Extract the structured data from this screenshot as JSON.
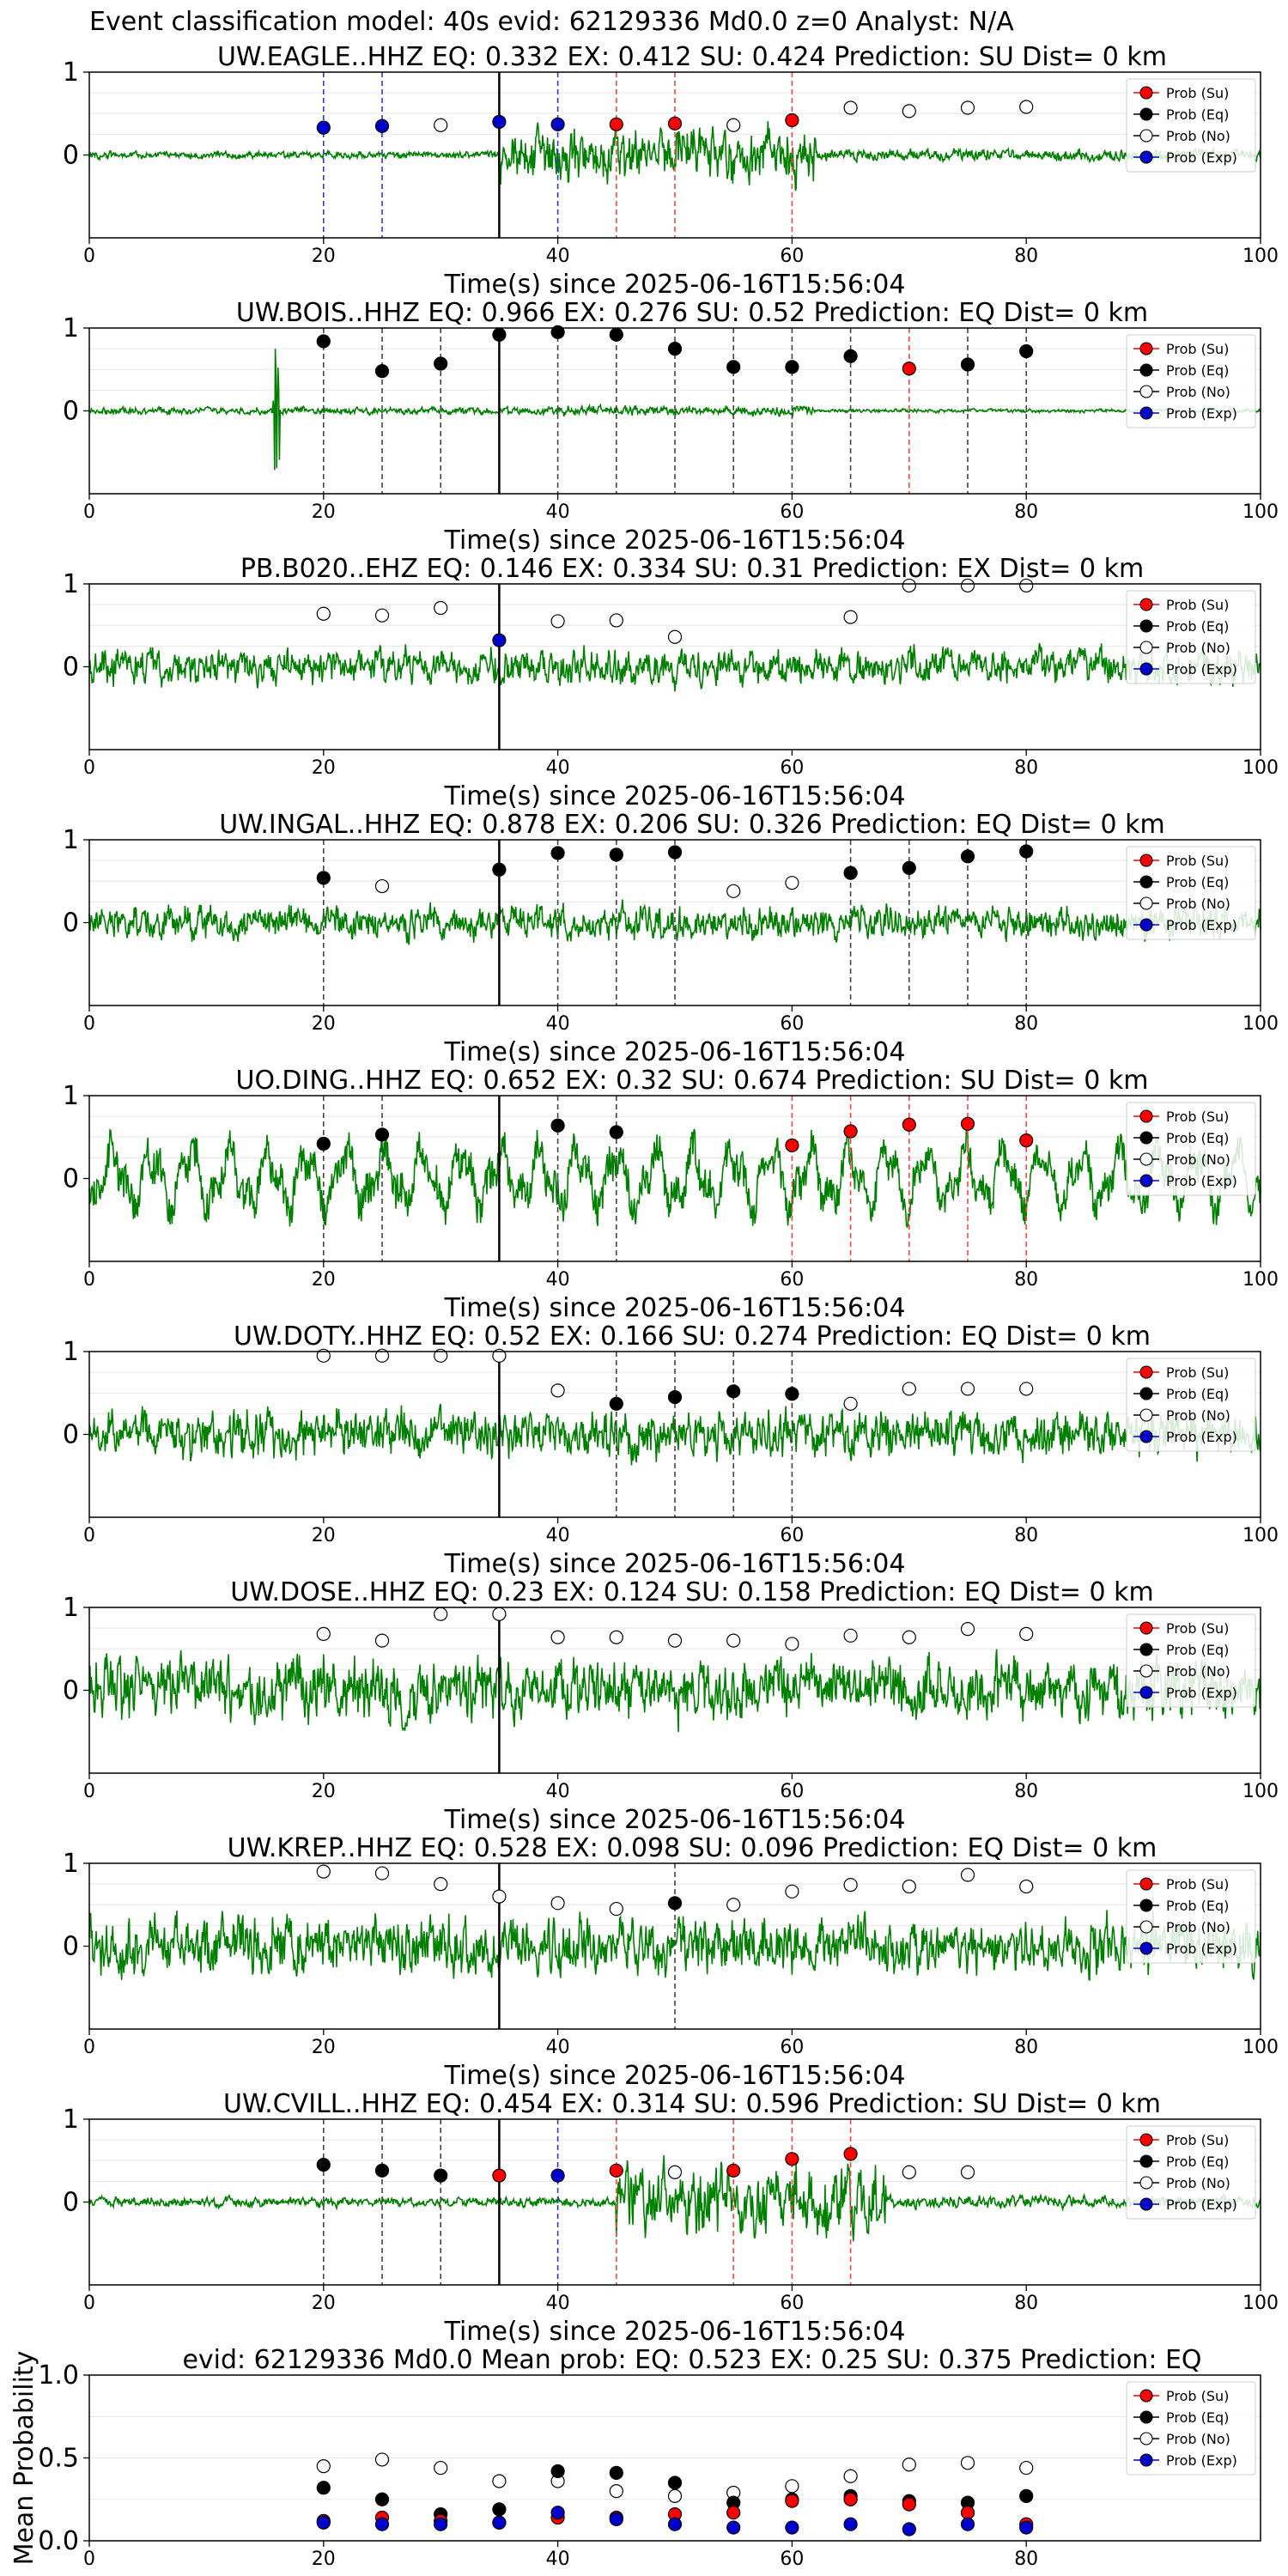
{
  "figure_title": "Event classification model: 40s evid: 62129336 Md0.0 z=0 Analyst: N/A",
  "legend_labels": [
    "Prob (Su)",
    "Prob (Eq)",
    "Prob (No)",
    "Prob (Exp)"
  ],
  "colors": {
    "su": "#ff0000",
    "eq": "#000000",
    "no": "#ffffff",
    "exp": "#0000cc",
    "trace": "#008000"
  },
  "chart_data": [
    {
      "type": "line",
      "title": "UW.EAGLE..HHZ   EQ: 0.332  EX: 0.412  SU: 0.424   Prediction: SU    Dist= 0 km",
      "xlabel": "Time(s) since 2025-06-16T15:56:04",
      "ylabel": "",
      "xlim": [
        0,
        100
      ],
      "ylim": [
        -1,
        1
      ],
      "x_ticks": [
        0,
        20,
        40,
        60,
        80,
        100
      ],
      "y_ticks": [
        0,
        1
      ],
      "noise": [
        0.06,
        0.45,
        0.1
      ],
      "burst": [
        35,
        62
      ],
      "points": [
        {
          "x": 20,
          "y": 0.33,
          "cls": "exp"
        },
        {
          "x": 25,
          "y": 0.35,
          "cls": "exp"
        },
        {
          "x": 30,
          "y": 0.36,
          "cls": "no"
        },
        {
          "x": 35,
          "y": 0.4,
          "cls": "exp"
        },
        {
          "x": 40,
          "y": 0.37,
          "cls": "exp"
        },
        {
          "x": 45,
          "y": 0.37,
          "cls": "su"
        },
        {
          "x": 50,
          "y": 0.38,
          "cls": "su"
        },
        {
          "x": 55,
          "y": 0.36,
          "cls": "no"
        },
        {
          "x": 60,
          "y": 0.42,
          "cls": "su"
        },
        {
          "x": 65,
          "y": 0.57,
          "cls": "no"
        },
        {
          "x": 70,
          "y": 0.53,
          "cls": "no"
        },
        {
          "x": 75,
          "y": 0.57,
          "cls": "no"
        },
        {
          "x": 80,
          "y": 0.58,
          "cls": "no"
        }
      ],
      "vlines": [
        {
          "x": 20,
          "cls": "exp"
        },
        {
          "x": 25,
          "cls": "exp"
        },
        {
          "x": 40,
          "cls": "exp"
        },
        {
          "x": 45,
          "cls": "su"
        },
        {
          "x": 50,
          "cls": "su"
        },
        {
          "x": 60,
          "cls": "su"
        }
      ]
    },
    {
      "type": "line",
      "title": "UW.BOIS..HHZ   EQ: 0.966  EX: 0.276  SU: 0.52   Prediction: EQ    Dist= 0 km",
      "xlabel": "Time(s) since 2025-06-16T15:56:04",
      "ylabel": "",
      "xlim": [
        0,
        100
      ],
      "ylim": [
        -1,
        1
      ],
      "x_ticks": [
        0,
        20,
        40,
        60,
        80,
        100
      ],
      "y_ticks": [
        0,
        1
      ],
      "noise": [
        0.06,
        0.08,
        0.03
      ],
      "spike": [
        16,
        0.9
      ],
      "points": [
        {
          "x": 20,
          "y": 0.84,
          "cls": "eq"
        },
        {
          "x": 25,
          "y": 0.48,
          "cls": "eq"
        },
        {
          "x": 30,
          "y": 0.57,
          "cls": "eq"
        },
        {
          "x": 35,
          "y": 0.92,
          "cls": "eq"
        },
        {
          "x": 40,
          "y": 0.95,
          "cls": "eq"
        },
        {
          "x": 45,
          "y": 0.92,
          "cls": "eq"
        },
        {
          "x": 50,
          "y": 0.75,
          "cls": "eq"
        },
        {
          "x": 55,
          "y": 0.53,
          "cls": "eq"
        },
        {
          "x": 60,
          "y": 0.53,
          "cls": "eq"
        },
        {
          "x": 65,
          "y": 0.66,
          "cls": "eq"
        },
        {
          "x": 70,
          "y": 0.51,
          "cls": "su"
        },
        {
          "x": 75,
          "y": 0.56,
          "cls": "eq"
        },
        {
          "x": 80,
          "y": 0.72,
          "cls": "eq"
        }
      ],
      "vlines": [
        {
          "x": 20,
          "cls": "eq"
        },
        {
          "x": 25,
          "cls": "eq"
        },
        {
          "x": 30,
          "cls": "eq"
        },
        {
          "x": 40,
          "cls": "eq"
        },
        {
          "x": 45,
          "cls": "eq"
        },
        {
          "x": 50,
          "cls": "eq"
        },
        {
          "x": 55,
          "cls": "eq"
        },
        {
          "x": 60,
          "cls": "eq"
        },
        {
          "x": 65,
          "cls": "eq"
        },
        {
          "x": 70,
          "cls": "su"
        },
        {
          "x": 75,
          "cls": "eq"
        },
        {
          "x": 80,
          "cls": "eq"
        }
      ]
    },
    {
      "type": "line",
      "title": "PB.B020..EHZ   EQ: 0.146  EX: 0.334  SU: 0.31   Prediction: EX    Dist= 0 km",
      "xlabel": "Time(s) since 2025-06-16T15:56:04",
      "ylabel": "",
      "xlim": [
        0,
        100
      ],
      "ylim": [
        -1,
        1
      ],
      "x_ticks": [
        0,
        20,
        40,
        60,
        80,
        100
      ],
      "y_ticks": [
        0,
        1
      ],
      "noise": [
        0.3,
        0.3,
        0.3
      ],
      "points": [
        {
          "x": 20,
          "y": 0.64,
          "cls": "no"
        },
        {
          "x": 25,
          "y": 0.62,
          "cls": "no"
        },
        {
          "x": 30,
          "y": 0.71,
          "cls": "no"
        },
        {
          "x": 35,
          "y": 0.32,
          "cls": "exp"
        },
        {
          "x": 40,
          "y": 0.55,
          "cls": "no"
        },
        {
          "x": 45,
          "y": 0.56,
          "cls": "no"
        },
        {
          "x": 50,
          "y": 0.36,
          "cls": "no"
        },
        {
          "x": 65,
          "y": 0.6,
          "cls": "no"
        },
        {
          "x": 70,
          "y": 0.98,
          "cls": "no"
        },
        {
          "x": 75,
          "y": 0.98,
          "cls": "no"
        },
        {
          "x": 80,
          "y": 0.98,
          "cls": "no"
        }
      ],
      "vlines": []
    },
    {
      "type": "line",
      "title": "UW.INGAL..HHZ   EQ: 0.878  EX: 0.206  SU: 0.326   Prediction: EQ    Dist= 0 km",
      "xlabel": "Time(s) since 2025-06-16T15:56:04",
      "ylabel": "",
      "xlim": [
        0,
        100
      ],
      "ylim": [
        -1,
        1
      ],
      "x_ticks": [
        0,
        20,
        40,
        60,
        80,
        100
      ],
      "y_ticks": [
        0,
        1
      ],
      "noise": [
        0.28,
        0.28,
        0.28
      ],
      "points": [
        {
          "x": 20,
          "y": 0.54,
          "cls": "eq"
        },
        {
          "x": 25,
          "y": 0.44,
          "cls": "no"
        },
        {
          "x": 35,
          "y": 0.64,
          "cls": "eq"
        },
        {
          "x": 40,
          "y": 0.84,
          "cls": "eq"
        },
        {
          "x": 45,
          "y": 0.82,
          "cls": "eq"
        },
        {
          "x": 50,
          "y": 0.85,
          "cls": "eq"
        },
        {
          "x": 55,
          "y": 0.38,
          "cls": "no"
        },
        {
          "x": 60,
          "y": 0.48,
          "cls": "no"
        },
        {
          "x": 65,
          "y": 0.6,
          "cls": "eq"
        },
        {
          "x": 70,
          "y": 0.66,
          "cls": "eq"
        },
        {
          "x": 75,
          "y": 0.8,
          "cls": "eq"
        },
        {
          "x": 80,
          "y": 0.86,
          "cls": "eq"
        }
      ],
      "vlines": [
        {
          "x": 20,
          "cls": "eq"
        },
        {
          "x": 40,
          "cls": "eq"
        },
        {
          "x": 45,
          "cls": "eq"
        },
        {
          "x": 50,
          "cls": "eq"
        },
        {
          "x": 65,
          "cls": "eq"
        },
        {
          "x": 70,
          "cls": "eq"
        },
        {
          "x": 75,
          "cls": "eq"
        },
        {
          "x": 80,
          "cls": "eq"
        }
      ]
    },
    {
      "type": "line",
      "title": "UO.DING..HHZ   EQ: 0.652  EX: 0.32  SU: 0.674   Prediction: SU    Dist= 0 km",
      "xlabel": "Time(s) since 2025-06-16T15:56:04",
      "ylabel": "",
      "xlim": [
        0,
        100
      ],
      "ylim": [
        -1,
        1
      ],
      "x_ticks": [
        0,
        20,
        40,
        60,
        80,
        100
      ],
      "y_ticks": [
        0,
        1
      ],
      "noise": [
        0.45,
        0.45,
        0.4
      ],
      "wavy": true,
      "points": [
        {
          "x": 20,
          "y": 0.42,
          "cls": "eq"
        },
        {
          "x": 25,
          "y": 0.53,
          "cls": "eq"
        },
        {
          "x": 40,
          "y": 0.64,
          "cls": "eq"
        },
        {
          "x": 45,
          "y": 0.56,
          "cls": "eq"
        },
        {
          "x": 60,
          "y": 0.4,
          "cls": "su"
        },
        {
          "x": 65,
          "y": 0.57,
          "cls": "su"
        },
        {
          "x": 70,
          "y": 0.65,
          "cls": "su"
        },
        {
          "x": 75,
          "y": 0.66,
          "cls": "su"
        },
        {
          "x": 80,
          "y": 0.46,
          "cls": "su"
        }
      ],
      "vlines": [
        {
          "x": 20,
          "cls": "eq"
        },
        {
          "x": 25,
          "cls": "eq"
        },
        {
          "x": 40,
          "cls": "eq"
        },
        {
          "x": 45,
          "cls": "eq"
        },
        {
          "x": 60,
          "cls": "su"
        },
        {
          "x": 65,
          "cls": "su"
        },
        {
          "x": 70,
          "cls": "su"
        },
        {
          "x": 75,
          "cls": "su"
        },
        {
          "x": 80,
          "cls": "su"
        }
      ]
    },
    {
      "type": "line",
      "title": "UW.DOTY..HHZ   EQ: 0.52  EX: 0.166  SU: 0.274   Prediction: EQ    Dist= 0 km",
      "xlabel": "Time(s) since 2025-06-16T15:56:04",
      "ylabel": "",
      "xlim": [
        0,
        100
      ],
      "ylim": [
        -1,
        1
      ],
      "x_ticks": [
        0,
        20,
        40,
        60,
        80,
        100
      ],
      "y_ticks": [
        0,
        1
      ],
      "noise": [
        0.4,
        0.4,
        0.38
      ],
      "points": [
        {
          "x": 20,
          "y": 0.95,
          "cls": "no"
        },
        {
          "x": 25,
          "y": 0.95,
          "cls": "no"
        },
        {
          "x": 30,
          "y": 0.95,
          "cls": "no"
        },
        {
          "x": 35,
          "y": 0.95,
          "cls": "no"
        },
        {
          "x": 40,
          "y": 0.53,
          "cls": "no"
        },
        {
          "x": 45,
          "y": 0.37,
          "cls": "eq"
        },
        {
          "x": 50,
          "y": 0.45,
          "cls": "eq"
        },
        {
          "x": 55,
          "y": 0.52,
          "cls": "eq"
        },
        {
          "x": 60,
          "y": 0.49,
          "cls": "eq"
        },
        {
          "x": 65,
          "y": 0.37,
          "cls": "no"
        },
        {
          "x": 70,
          "y": 0.55,
          "cls": "no"
        },
        {
          "x": 75,
          "y": 0.55,
          "cls": "no"
        },
        {
          "x": 80,
          "y": 0.55,
          "cls": "no"
        }
      ],
      "vlines": [
        {
          "x": 45,
          "cls": "eq"
        },
        {
          "x": 50,
          "cls": "eq"
        },
        {
          "x": 55,
          "cls": "eq"
        },
        {
          "x": 60,
          "cls": "eq"
        }
      ]
    },
    {
      "type": "line",
      "title": "UW.DOSE..HHZ   EQ: 0.23  EX: 0.124  SU: 0.158   Prediction: EQ    Dist= 0 km",
      "xlabel": "Time(s) since 2025-06-16T15:56:04",
      "ylabel": "",
      "xlim": [
        0,
        100
      ],
      "ylim": [
        -1,
        1
      ],
      "x_ticks": [
        0,
        20,
        40,
        60,
        80,
        100
      ],
      "y_ticks": [
        0,
        1
      ],
      "noise": [
        0.55,
        0.5,
        0.5
      ],
      "points": [
        {
          "x": 20,
          "y": 0.68,
          "cls": "no"
        },
        {
          "x": 25,
          "y": 0.6,
          "cls": "no"
        },
        {
          "x": 30,
          "y": 0.92,
          "cls": "no"
        },
        {
          "x": 35,
          "y": 0.92,
          "cls": "no"
        },
        {
          "x": 40,
          "y": 0.64,
          "cls": "no"
        },
        {
          "x": 45,
          "y": 0.64,
          "cls": "no"
        },
        {
          "x": 50,
          "y": 0.6,
          "cls": "no"
        },
        {
          "x": 55,
          "y": 0.6,
          "cls": "no"
        },
        {
          "x": 60,
          "y": 0.56,
          "cls": "no"
        },
        {
          "x": 65,
          "y": 0.66,
          "cls": "no"
        },
        {
          "x": 70,
          "y": 0.64,
          "cls": "no"
        },
        {
          "x": 75,
          "y": 0.74,
          "cls": "no"
        },
        {
          "x": 80,
          "y": 0.68,
          "cls": "no"
        }
      ],
      "vlines": []
    },
    {
      "type": "line",
      "title": "UW.KREP..HHZ   EQ: 0.528  EX: 0.098  SU: 0.096   Prediction: EQ    Dist= 0 km",
      "xlabel": "Time(s) since 2025-06-16T15:56:04",
      "ylabel": "",
      "xlim": [
        0,
        100
      ],
      "ylim": [
        -1,
        1
      ],
      "x_ticks": [
        0,
        20,
        40,
        60,
        80,
        100
      ],
      "y_ticks": [
        0,
        1
      ],
      "noise": [
        0.5,
        0.48,
        0.45
      ],
      "points": [
        {
          "x": 20,
          "y": 0.9,
          "cls": "no"
        },
        {
          "x": 25,
          "y": 0.88,
          "cls": "no"
        },
        {
          "x": 30,
          "y": 0.75,
          "cls": "no"
        },
        {
          "x": 35,
          "y": 0.6,
          "cls": "no"
        },
        {
          "x": 40,
          "y": 0.52,
          "cls": "no"
        },
        {
          "x": 45,
          "y": 0.45,
          "cls": "no"
        },
        {
          "x": 50,
          "y": 0.52,
          "cls": "eq"
        },
        {
          "x": 55,
          "y": 0.5,
          "cls": "no"
        },
        {
          "x": 60,
          "y": 0.66,
          "cls": "no"
        },
        {
          "x": 65,
          "y": 0.74,
          "cls": "no"
        },
        {
          "x": 70,
          "y": 0.72,
          "cls": "no"
        },
        {
          "x": 75,
          "y": 0.86,
          "cls": "no"
        },
        {
          "x": 80,
          "y": 0.72,
          "cls": "no"
        }
      ],
      "vlines": [
        {
          "x": 50,
          "cls": "eq"
        }
      ]
    },
    {
      "type": "line",
      "title": "UW.CVILL..HHZ   EQ: 0.454  EX: 0.314  SU: 0.596   Prediction: SU    Dist= 0 km",
      "xlabel": "Time(s) since 2025-06-16T15:56:04",
      "ylabel": "",
      "xlim": [
        0,
        100
      ],
      "ylim": [
        -1,
        1
      ],
      "x_ticks": [
        0,
        20,
        40,
        60,
        80,
        100
      ],
      "y_ticks": [
        0,
        1
      ],
      "noise": [
        0.08,
        0.6,
        0.1
      ],
      "burst": [
        45,
        68
      ],
      "points": [
        {
          "x": 20,
          "y": 0.45,
          "cls": "eq"
        },
        {
          "x": 25,
          "y": 0.38,
          "cls": "eq"
        },
        {
          "x": 30,
          "y": 0.32,
          "cls": "eq"
        },
        {
          "x": 35,
          "y": 0.32,
          "cls": "su"
        },
        {
          "x": 40,
          "y": 0.32,
          "cls": "exp"
        },
        {
          "x": 45,
          "y": 0.38,
          "cls": "su"
        },
        {
          "x": 50,
          "y": 0.36,
          "cls": "no"
        },
        {
          "x": 55,
          "y": 0.38,
          "cls": "su"
        },
        {
          "x": 60,
          "y": 0.52,
          "cls": "su"
        },
        {
          "x": 65,
          "y": 0.58,
          "cls": "su"
        },
        {
          "x": 70,
          "y": 0.36,
          "cls": "no"
        },
        {
          "x": 75,
          "y": 0.36,
          "cls": "no"
        }
      ],
      "vlines": [
        {
          "x": 20,
          "cls": "eq"
        },
        {
          "x": 25,
          "cls": "eq"
        },
        {
          "x": 30,
          "cls": "eq"
        },
        {
          "x": 40,
          "cls": "exp"
        },
        {
          "x": 45,
          "cls": "su"
        },
        {
          "x": 55,
          "cls": "su"
        },
        {
          "x": 60,
          "cls": "su"
        },
        {
          "x": 65,
          "cls": "su"
        }
      ]
    },
    {
      "type": "scatter",
      "title": "evid: 62129336  Md0.0   Mean prob:   EQ: 0.523  EX: 0.25  SU: 0.375   Prediction: EQ",
      "xlabel": "",
      "ylabel": "Mean Probability",
      "xlim": [
        0,
        100
      ],
      "ylim": [
        0,
        1
      ],
      "x_ticks": [
        0,
        20,
        40,
        60,
        80
      ],
      "y_ticks": [
        0.0,
        0.5,
        1.0
      ],
      "y_tick_labels": [
        "0.0",
        "0.5",
        "1.0"
      ],
      "x": [
        20,
        25,
        30,
        35,
        40,
        45,
        50,
        55,
        60,
        65,
        70,
        75,
        80
      ],
      "series": [
        {
          "cls": "no",
          "values": [
            0.45,
            0.49,
            0.44,
            0.36,
            0.36,
            0.3,
            0.27,
            0.29,
            0.33,
            0.39,
            0.46,
            0.47,
            0.44
          ]
        },
        {
          "cls": "eq",
          "values": [
            0.32,
            0.25,
            0.16,
            0.19,
            0.42,
            0.41,
            0.35,
            0.23,
            0.25,
            0.27,
            0.24,
            0.23,
            0.27
          ]
        },
        {
          "cls": "su",
          "values": [
            0.12,
            0.14,
            0.12,
            0.11,
            0.14,
            0.14,
            0.16,
            0.17,
            0.24,
            0.25,
            0.22,
            0.17,
            0.1
          ]
        },
        {
          "cls": "exp",
          "values": [
            0.11,
            0.1,
            0.1,
            0.11,
            0.17,
            0.13,
            0.1,
            0.08,
            0.08,
            0.1,
            0.07,
            0.1,
            0.08
          ]
        }
      ],
      "vlines": []
    }
  ]
}
